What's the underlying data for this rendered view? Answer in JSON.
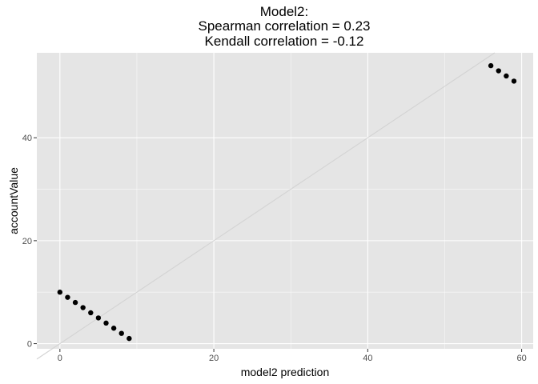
{
  "chart_data": {
    "type": "scatter",
    "title_lines": [
      "Model2:",
      "Spearman correlation = 0.23",
      "Kendall correlation = -0.12"
    ],
    "xlabel": "model2 prediction",
    "ylabel": "accountValue",
    "xlim": [
      -3,
      61.5
    ],
    "ylim": [
      -1,
      56.5
    ],
    "x_ticks": [
      0,
      20,
      40,
      60
    ],
    "y_ticks": [
      0,
      20,
      40
    ],
    "x_tick_labels": [
      "0",
      "20",
      "40",
      "60"
    ],
    "y_tick_labels": [
      "0",
      "20",
      "40"
    ],
    "grid": true,
    "reference_line": {
      "slope": 1,
      "intercept": 0,
      "color": "#d3d3d3"
    },
    "points": [
      {
        "x": 0,
        "y": 10
      },
      {
        "x": 1,
        "y": 9
      },
      {
        "x": 2,
        "y": 8
      },
      {
        "x": 3,
        "y": 7
      },
      {
        "x": 4,
        "y": 6
      },
      {
        "x": 5,
        "y": 5
      },
      {
        "x": 6,
        "y": 4
      },
      {
        "x": 7,
        "y": 3
      },
      {
        "x": 8,
        "y": 2
      },
      {
        "x": 9,
        "y": 1
      },
      {
        "x": 56,
        "y": 54
      },
      {
        "x": 57,
        "y": 53
      },
      {
        "x": 58,
        "y": 52
      },
      {
        "x": 59,
        "y": 51
      }
    ]
  },
  "colors": {
    "panel_background": "#e5e5e5",
    "grid_major": "#ffffff",
    "point": "#000000",
    "tick_mark": "#333333"
  }
}
